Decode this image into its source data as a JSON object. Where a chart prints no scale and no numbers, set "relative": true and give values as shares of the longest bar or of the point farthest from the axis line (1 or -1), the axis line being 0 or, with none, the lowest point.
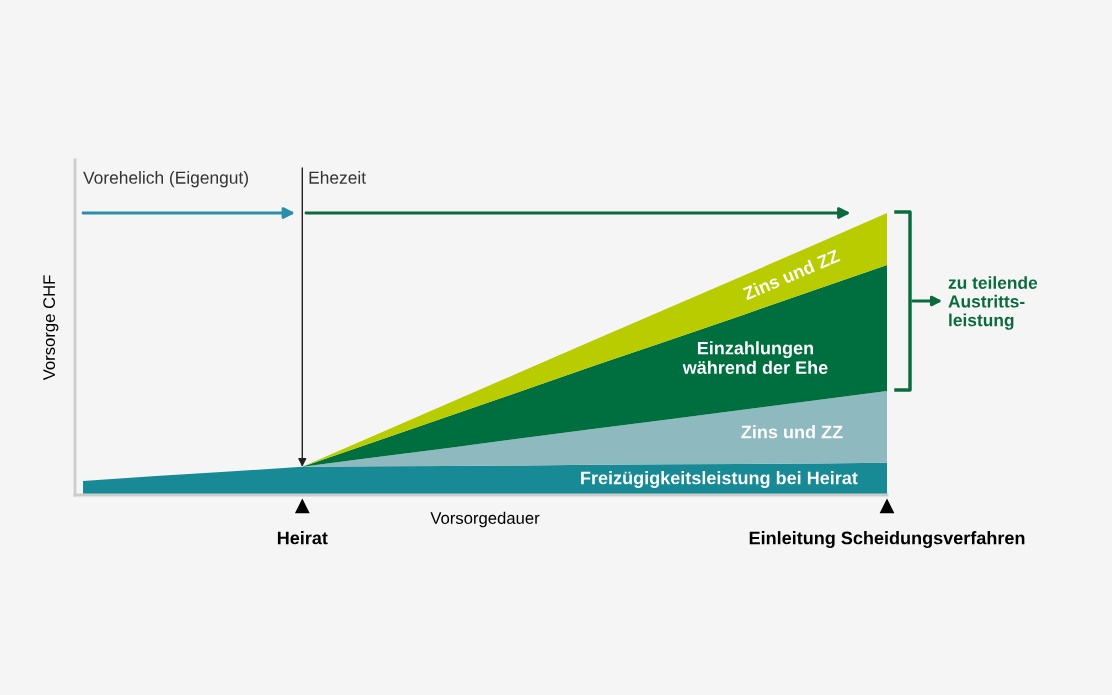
{
  "chart_data": {
    "type": "area",
    "stacked": true,
    "relative": true,
    "xlabel": "Vorsorgedauer",
    "ylabel": "Vorsorge CHF",
    "categories": [
      null,
      null,
      null,
      "Heirat",
      null,
      null,
      null,
      null,
      null,
      null,
      null,
      "Einleitung Scheidungsverfahren"
    ],
    "series": [
      {
        "name": "Freizügigkeitsleistung bei Heirat",
        "color": "#188a96",
        "values": [
          0.05,
          0.067,
          0.083,
          0.1,
          0.102,
          0.103,
          0.105,
          0.107,
          0.109,
          0.11,
          0.112,
          0.114
        ]
      },
      {
        "name": "Zins und ZZ",
        "color": "#8db9bf",
        "values": [
          0,
          0,
          0,
          0,
          0.032,
          0.064,
          0.096,
          0.128,
          0.159,
          0.191,
          0.223,
          0.255
        ]
      },
      {
        "name": "Einzahlungen\nwährend der Ehe",
        "color": "#006f40",
        "values": [
          0,
          0,
          0,
          0,
          0.056,
          0.112,
          0.168,
          0.224,
          0.279,
          0.335,
          0.391,
          0.447
        ]
      },
      {
        "name": "Zins und ZZ",
        "color": "#b9cc00",
        "values": [
          0,
          0,
          0,
          0,
          0.023,
          0.046,
          0.069,
          0.092,
          0.115,
          0.138,
          0.161,
          0.184
        ]
      }
    ],
    "annotations": [
      "Vorehelich (Eigengut)",
      "Ehezeit",
      "zu teilende\nAustritts-\nleistung"
    ]
  }
}
